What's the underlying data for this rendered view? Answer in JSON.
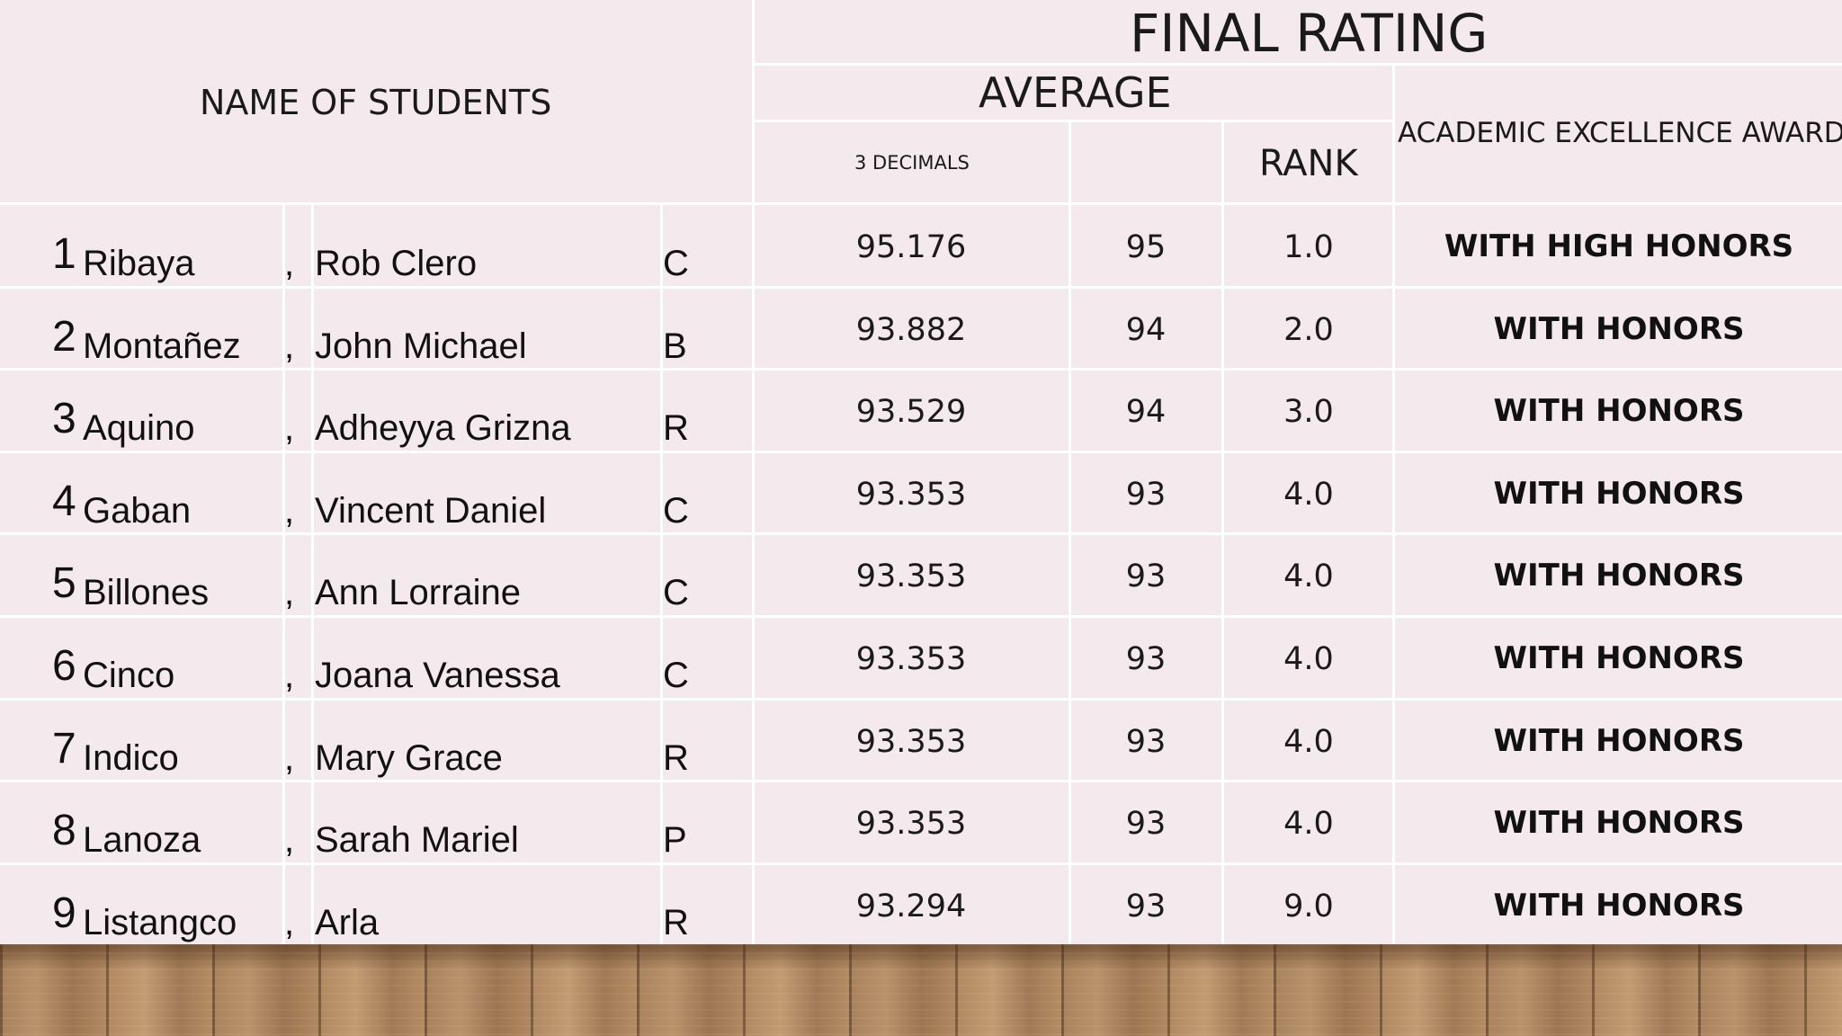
{
  "header": {
    "final_rating": "FINAL RATING",
    "average": "AVERAGE",
    "names": "NAME OF STUDENTS",
    "award": "ACADEMIC EXCELLENCE AWARD",
    "three_decimals": "3 DECIMALS",
    "rank": "RANK"
  },
  "comma": ",",
  "students": [
    {
      "no": "1",
      "last": "Ribaya",
      "first": "Rob Clero",
      "section": "C",
      "avg3": "95.176",
      "avg": "95",
      "rank": "1.0",
      "award": "WITH HIGH HONORS"
    },
    {
      "no": "2",
      "last": "Montañez",
      "first": "John Michael",
      "section": "B",
      "avg3": "93.882",
      "avg": "94",
      "rank": "2.0",
      "award": "WITH HONORS"
    },
    {
      "no": "3",
      "last": "Aquino",
      "first": "Adheyya Grizna",
      "section": "R",
      "avg3": "93.529",
      "avg": "94",
      "rank": "3.0",
      "award": "WITH HONORS"
    },
    {
      "no": "4",
      "last": "Gaban",
      "first": "Vincent Daniel",
      "section": "C",
      "avg3": "93.353",
      "avg": "93",
      "rank": "4.0",
      "award": "WITH HONORS"
    },
    {
      "no": "5",
      "last": "Billones",
      "first": "Ann Lorraine",
      "section": "C",
      "avg3": "93.353",
      "avg": "93",
      "rank": "4.0",
      "award": "WITH HONORS"
    },
    {
      "no": "6",
      "last": "Cinco",
      "first": "Joana Vanessa",
      "section": "C",
      "avg3": "93.353",
      "avg": "93",
      "rank": "4.0",
      "award": "WITH HONORS"
    },
    {
      "no": "7",
      "last": "Indico",
      "first": "Mary Grace",
      "section": "R",
      "avg3": "93.353",
      "avg": "93",
      "rank": "4.0",
      "award": "WITH HONORS"
    },
    {
      "no": "8",
      "last": "Lanoza",
      "first": "Sarah Mariel",
      "section": "P",
      "avg3": "93.353",
      "avg": "93",
      "rank": "4.0",
      "award": "WITH HONORS"
    },
    {
      "no": "9",
      "last": "Listangco",
      "first": "Arla",
      "section": "R",
      "avg3": "93.294",
      "avg": "93",
      "rank": "9.0",
      "award": "WITH HONORS"
    }
  ]
}
